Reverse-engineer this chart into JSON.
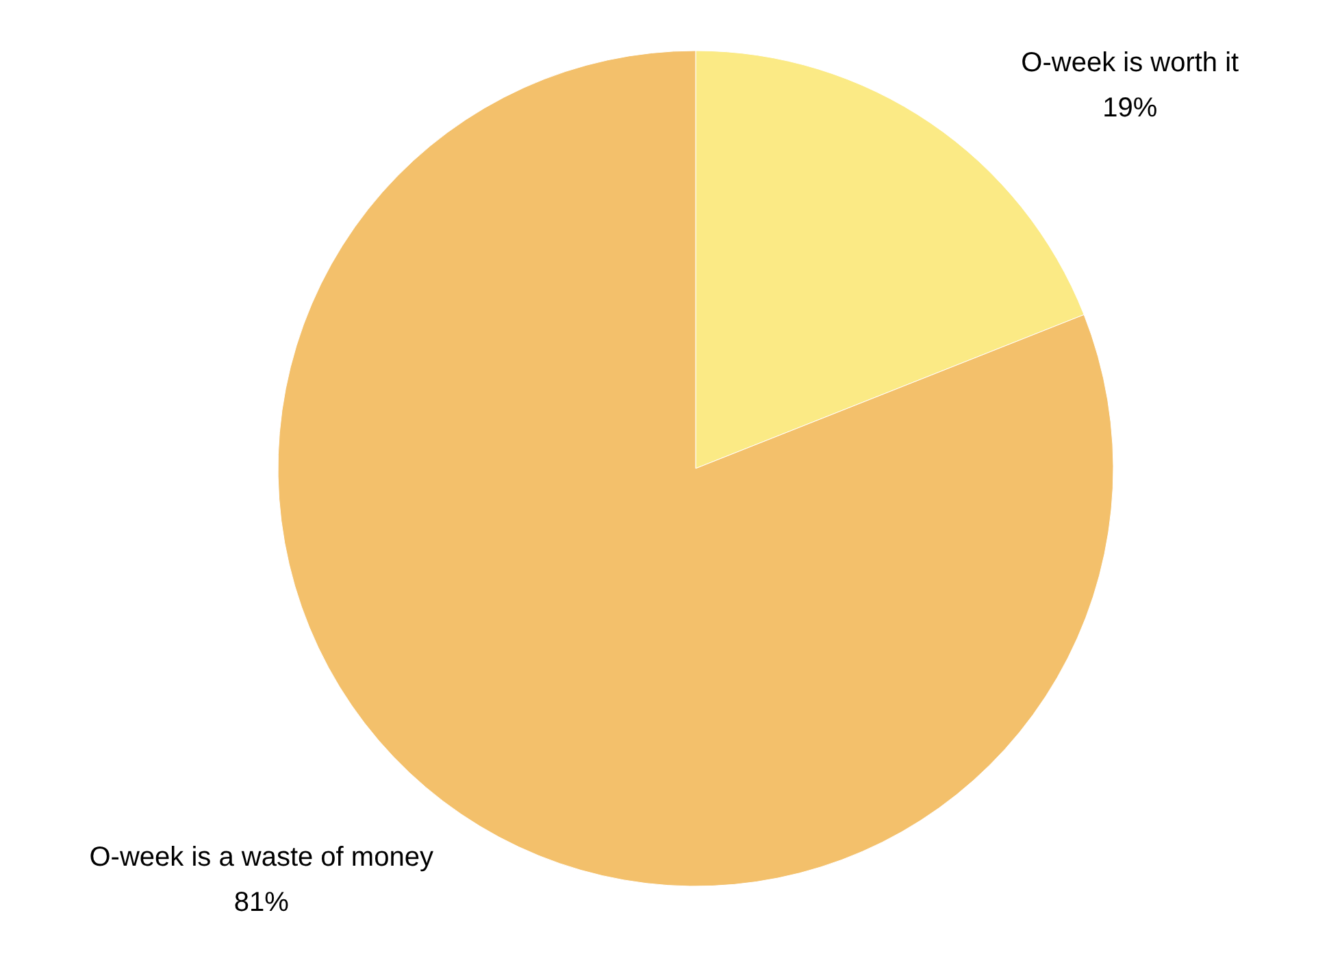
{
  "chart_data": {
    "type": "pie",
    "categories": [
      "O-week is worth it",
      "O-week is a waste of money"
    ],
    "values": [
      19,
      81
    ],
    "value_labels": [
      "19%",
      "81%"
    ],
    "colors": [
      "#fbea85",
      "#f3c06b"
    ]
  }
}
